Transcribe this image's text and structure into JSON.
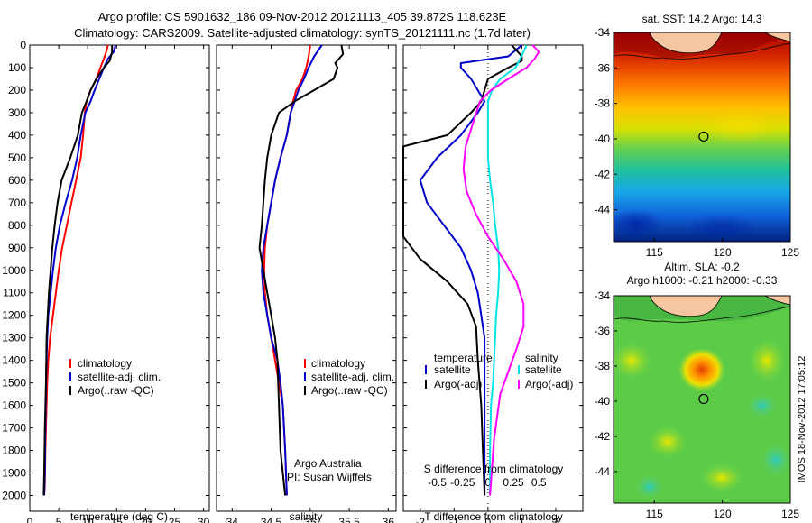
{
  "figure": {
    "title_line1": "Argo profile: CS 5901632_186 09-Nov-2012 20121113_405 39.872S 118.623E",
    "title_line2": "Climatology: CARS2009. Satellite-adjusted climatology: synTS_20121111.nc (1.7d later)",
    "side_stamp": "IMOS 18-Nov-2012 17:05:12"
  },
  "chart_data": [
    {
      "id": "temperature",
      "type": "line",
      "xlabel": "temperature (deg C)",
      "ylabel": "",
      "xlim": [
        0,
        31
      ],
      "ylim": [
        2070,
        0
      ],
      "xticks": [
        0,
        5,
        10,
        15,
        20,
        25,
        30
      ],
      "yticks": [
        0,
        100,
        200,
        300,
        400,
        500,
        600,
        700,
        800,
        900,
        1000,
        1100,
        1200,
        1300,
        1400,
        1500,
        1600,
        1700,
        1800,
        1900,
        2000
      ],
      "colors": {
        "climatology": "#ff0000",
        "satellite": "#0000cc",
        "argo": "#000000"
      },
      "legend": {
        "placement": "lower-center",
        "entries": [
          "climatology",
          "satellite-adj. clim.",
          "Argo(..raw -QC)"
        ]
      },
      "series": [
        {
          "key": "climatology",
          "x": [
            13.5,
            13.2,
            12.8,
            12.2,
            11.5,
            10.5,
            9.8,
            9.5,
            9.2,
            8.8,
            8.0,
            7.2,
            6.4,
            5.6,
            5.0,
            4.5,
            4.0,
            3.5,
            3.2,
            3.0,
            2.9,
            2.7,
            2.6,
            2.5
          ],
          "y": [
            0,
            30,
            60,
            100,
            150,
            200,
            250,
            300,
            400,
            500,
            600,
            700,
            800,
            900,
            1000,
            1100,
            1200,
            1300,
            1400,
            1500,
            1600,
            1800,
            1950,
            2000
          ]
        },
        {
          "key": "satellite",
          "x": [
            14.8,
            14.5,
            13.5,
            12.8,
            12.0,
            11.2,
            10.5,
            9.6,
            8.8,
            8.2,
            7.3,
            6.2,
            5.2,
            4.5,
            4.0,
            3.6,
            3.2,
            3.0,
            2.8,
            2.7,
            2.6,
            2.5
          ],
          "y": [
            0,
            30,
            60,
            100,
            150,
            200,
            250,
            300,
            400,
            500,
            600,
            700,
            800,
            900,
            1000,
            1100,
            1200,
            1300,
            1500,
            1700,
            1900,
            2000
          ]
        },
        {
          "key": "argo",
          "x": [
            14.2,
            14.2,
            13.8,
            12.8,
            11.5,
            10.5,
            9.8,
            9.0,
            8.3,
            7.0,
            5.5,
            4.8,
            4.3,
            3.9,
            3.6,
            3.3,
            3.1,
            2.9,
            2.8,
            2.6,
            2.5,
            2.4
          ],
          "y": [
            0,
            30,
            70,
            100,
            150,
            200,
            250,
            300,
            400,
            500,
            600,
            700,
            800,
            900,
            1000,
            1100,
            1200,
            1300,
            1500,
            1700,
            1900,
            2000
          ]
        }
      ]
    },
    {
      "id": "salinity",
      "type": "line",
      "xlabel": "salinity",
      "ylabel": "",
      "xlim": [
        33.8,
        36.1
      ],
      "ylim": [
        2070,
        0
      ],
      "xticks": [
        34,
        34.5,
        35,
        35.5,
        36
      ],
      "colors": {
        "climatology": "#ff0000",
        "satellite": "#0000cc",
        "argo": "#000000"
      },
      "legend": {
        "placement": "lower-center",
        "entries": [
          "climatology",
          "satellite-adj. clim.",
          "Argo(..raw -QC)"
        ]
      },
      "annotations": [
        "Argo Australia",
        "PI: Susan Wijffels"
      ],
      "series": [
        {
          "key": "climatology",
          "x": [
            35.0,
            34.98,
            34.95,
            34.9,
            34.82,
            34.78,
            34.75,
            34.7,
            34.62,
            34.55,
            34.5,
            34.45,
            34.42,
            34.41,
            34.42,
            34.45,
            34.5,
            34.55,
            34.6,
            34.65,
            34.68,
            34.7
          ],
          "y": [
            0,
            50,
            100,
            150,
            200,
            250,
            300,
            400,
            500,
            600,
            700,
            800,
            900,
            1000,
            1100,
            1200,
            1300,
            1400,
            1500,
            1600,
            1800,
            2000
          ]
        },
        {
          "key": "satellite",
          "x": [
            35.15,
            35.05,
            34.98,
            34.92,
            34.85,
            34.8,
            34.75,
            34.7,
            34.62,
            34.55,
            34.5,
            34.45,
            34.4,
            34.38,
            34.4,
            34.45,
            34.5,
            34.58,
            34.62,
            34.65,
            34.68,
            34.7
          ],
          "y": [
            0,
            50,
            100,
            150,
            200,
            250,
            300,
            400,
            500,
            600,
            700,
            800,
            900,
            1000,
            1100,
            1200,
            1300,
            1400,
            1500,
            1600,
            1800,
            2000
          ]
        },
        {
          "key": "argo",
          "x": [
            35.4,
            35.42,
            35.32,
            35.35,
            35.3,
            35.05,
            34.8,
            34.6,
            34.5,
            34.45,
            34.42,
            34.4,
            34.38,
            34.35,
            34.4,
            34.45,
            34.5,
            34.55,
            34.58,
            34.6,
            34.62,
            34.68
          ],
          "y": [
            0,
            40,
            80,
            100,
            150,
            200,
            250,
            300,
            400,
            500,
            600,
            700,
            800,
            900,
            1000,
            1100,
            1200,
            1300,
            1400,
            1600,
            1800,
            2000
          ]
        }
      ]
    },
    {
      "id": "difference",
      "type": "line",
      "xlabel": "T difference from climatology",
      "xlabel_top": "S difference from climatology",
      "ylabel": "",
      "xlim": [
        -2.5,
        2.8
      ],
      "ylim": [
        2070,
        0
      ],
      "xticks": [
        -2,
        -1,
        0,
        1,
        2
      ],
      "xticks_top": [
        -0.5,
        -0.25,
        0,
        0.25,
        0.5
      ],
      "colors": {
        "temperature_satellite": "#0000cc",
        "temperature_argo": "#000000",
        "salinity_satellite": "#00e5e5",
        "salinity_argo": "#ff00ff"
      },
      "legend": {
        "placement": "lower-center",
        "temperature_title": "temperature",
        "salinity_title": "salinity",
        "entries": [
          "satellite",
          "Argo(-adj)",
          "satellite",
          "Argo(-adj)"
        ]
      },
      "series": [
        {
          "key": "temperature_satellite",
          "x": [
            1.0,
            0.6,
            -0.8,
            -0.8,
            -0.5,
            -0.3,
            -0.1,
            -0.3,
            -0.8,
            -1.5,
            -2.0,
            -1.8,
            -1.3,
            -0.8,
            -0.5,
            -0.3,
            -0.2,
            -0.1,
            -0.1,
            -0.1,
            -0.1,
            -0.1
          ],
          "y": [
            0,
            50,
            80,
            100,
            150,
            200,
            250,
            300,
            400,
            500,
            600,
            700,
            800,
            900,
            1000,
            1100,
            1200,
            1300,
            1400,
            1600,
            1800,
            2000
          ]
        },
        {
          "key": "temperature_argo",
          "x": [
            0.7,
            1.0,
            1.0,
            0.6,
            0.0,
            -0.1,
            -0.2,
            -0.5,
            -1.2,
            -2.5,
            -2.5,
            -2.5,
            -2.5,
            -2.5,
            -2.0,
            -1.2,
            -0.6,
            -0.35,
            -0.3,
            -0.2,
            -0.15,
            -0.1
          ],
          "y": [
            0,
            50,
            70,
            100,
            150,
            200,
            250,
            300,
            400,
            450,
            500,
            700,
            800,
            850,
            950,
            1050,
            1150,
            1250,
            1400,
            1600,
            1800,
            2000
          ]
        },
        {
          "key": "salinity_satellite",
          "x": [
            0.38,
            0.33,
            0.27,
            0.12,
            0.04,
            0.0,
            0.0,
            0.0,
            0.0,
            0.02,
            0.05,
            0.07,
            0.1,
            0.11,
            0.1,
            0.08,
            0.07,
            0.06,
            0.05,
            0.03,
            0.02,
            0.02
          ],
          "y": [
            0,
            50,
            100,
            150,
            200,
            250,
            300,
            400,
            500,
            600,
            700,
            800,
            900,
            1000,
            1100,
            1200,
            1300,
            1400,
            1500,
            1600,
            1800,
            2000
          ]
        },
        {
          "key": "salinity_argo",
          "x": [
            0.44,
            0.5,
            0.46,
            0.38,
            0.2,
            0.03,
            -0.08,
            -0.15,
            -0.22,
            -0.24,
            -0.21,
            -0.12,
            0.0,
            0.15,
            0.28,
            0.35,
            0.35,
            0.28,
            0.2,
            0.12,
            0.06,
            0.02
          ],
          "y": [
            0,
            30,
            60,
            100,
            150,
            200,
            250,
            350,
            450,
            550,
            650,
            750,
            850,
            950,
            1050,
            1150,
            1250,
            1350,
            1450,
            1550,
            1750,
            2000
          ]
        }
      ]
    },
    {
      "id": "sst_map",
      "type": "heatmap",
      "title": "sat. SST: 14.2 Argo: 14.3",
      "xlim": [
        112,
        125
      ],
      "ylim": [
        -45.8,
        -34
      ],
      "xticks": [
        115,
        120,
        125
      ],
      "yticks": [
        -34,
        -36,
        -38,
        -40,
        -42,
        -44
      ],
      "marker": {
        "lon": 118.623,
        "lat": -39.872
      },
      "land_color": "#f5c6a0"
    },
    {
      "id": "sla_map",
      "type": "heatmap",
      "title_line1": "Altim. SLA: -0.2",
      "title_line2": "Argo h1000: -0.21 h2000: -0.33",
      "xlim": [
        112,
        125
      ],
      "ylim": [
        -45.8,
        -34
      ],
      "xticks": [
        115,
        120,
        125
      ],
      "yticks": [
        -34,
        -36,
        -38,
        -40,
        -42,
        -44
      ],
      "marker": {
        "lon": 118.623,
        "lat": -39.872
      },
      "land_color": "#f5c6a0"
    }
  ]
}
